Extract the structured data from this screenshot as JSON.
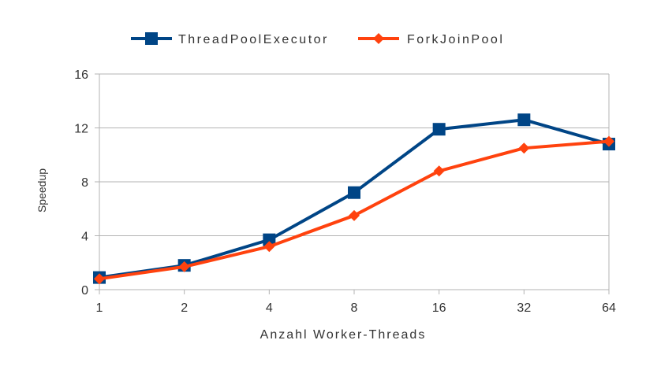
{
  "chart_data": {
    "type": "line",
    "title": "",
    "xlabel": "Anzahl Worker-Threads",
    "ylabel": "Speedup",
    "categories": [
      "1",
      "2",
      "4",
      "8",
      "16",
      "32",
      "64"
    ],
    "ylim": [
      0,
      16
    ],
    "yticks": [
      0,
      4,
      8,
      12,
      16
    ],
    "grid": true,
    "legend_position": "top",
    "series": [
      {
        "name": "ThreadPoolExecutor",
        "values": [
          0.9,
          1.8,
          3.7,
          7.2,
          11.9,
          12.6,
          10.8
        ],
        "color": "#004586",
        "marker": "square"
      },
      {
        "name": "ForkJoinPool",
        "values": [
          0.8,
          1.7,
          3.2,
          5.5,
          8.8,
          10.5,
          11.0
        ],
        "color": "#ff420e",
        "marker": "diamond"
      }
    ]
  }
}
